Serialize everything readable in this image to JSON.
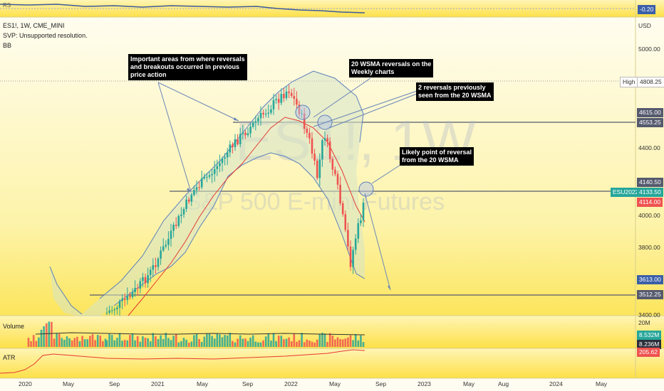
{
  "rsi": {
    "label": "RS",
    "value": "-0.20"
  },
  "header": {
    "symbol": "ES1!, 1W, CME_MINI",
    "svp": "SVP: Unsupported resolution.",
    "bb": "BB"
  },
  "currency": "USD",
  "watermark": {
    "ticker": "ES1!, 1W",
    "name": "S&P 500 E-mini Futures"
  },
  "annotations": [
    {
      "text": "Important areas from where reversals\nand breakouts occurred in previous\nprice action"
    },
    {
      "text": "20 WSMA reversals on the\nWeekly charts"
    },
    {
      "text": "2 reversals previously\nseen from the 20 WSMA"
    },
    {
      "text": "Likely point of reversal\nfrom the 20 WSMA"
    }
  ],
  "price_axis": {
    "ticks": [
      "5000.00",
      "4400.00",
      "4000.00",
      "3800.00",
      "3400.00"
    ],
    "high_label": "High",
    "high_value": "4808.25",
    "labels": {
      "p4615": "4615.00",
      "p4553": "4553.25",
      "p4140": "4140.50",
      "sym": "ESU2022",
      "p4133": "4133.50",
      "p4114": "4114.00",
      "p3613": "3613.00",
      "p3512": "3512.25"
    }
  },
  "volume": {
    "label": "Volume",
    "scale": "20M",
    "v1": "8.532M",
    "v2": "8.236M"
  },
  "atr": {
    "label": "ATR",
    "value": "205.62"
  },
  "time_axis": [
    "2020",
    "May",
    "Sep",
    "2021",
    "May",
    "Sep",
    "2022",
    "May",
    "Sep",
    "2023",
    "May",
    "Aug",
    "2024",
    "May"
  ],
  "colors": {
    "background": "#fef9c3",
    "gradient_top": "#fde047",
    "up": "#26a69a",
    "down": "#ef5350",
    "sma": "#e53935",
    "band": "#5b7fbd"
  },
  "chart_data": {
    "type": "candlestick",
    "timeframe": "1W",
    "symbol": "ES1!",
    "key_levels": [
      4808.25,
      4615.0,
      4553.25,
      4140.5,
      4133.5,
      4114.0,
      3613.0,
      3512.25
    ],
    "last_price": 4133.5,
    "indicators": [
      "SMA 20",
      "Bollinger Bands",
      "Volume",
      "ATR",
      "RS"
    ]
  }
}
